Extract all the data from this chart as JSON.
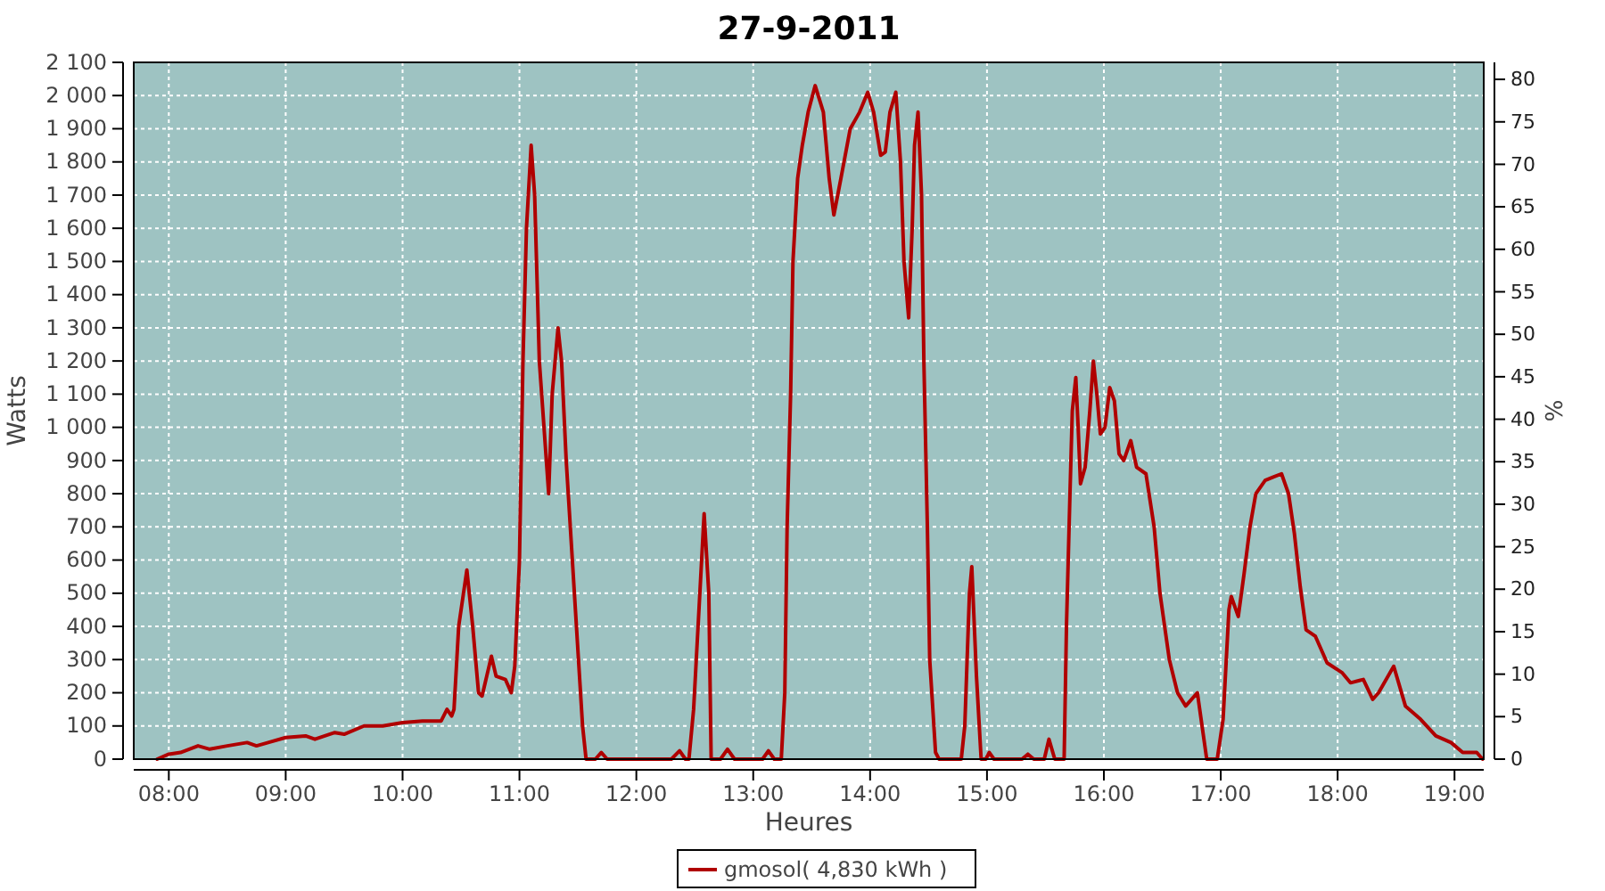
{
  "chart_data": {
    "type": "line",
    "title": "27-9-2011",
    "xlabel": "Heures",
    "ylabel": "Watts",
    "y2label": "%",
    "xlim": [
      7.7,
      19.25
    ],
    "xticks": [
      {
        "value": 8,
        "label": "08:00"
      },
      {
        "value": 9,
        "label": "09:00"
      },
      {
        "value": 10,
        "label": "10:00"
      },
      {
        "value": 11,
        "label": "11:00"
      },
      {
        "value": 12,
        "label": "12:00"
      },
      {
        "value": 13,
        "label": "13:00"
      },
      {
        "value": 14,
        "label": "14:00"
      },
      {
        "value": 15,
        "label": "15:00"
      },
      {
        "value": 16,
        "label": "16:00"
      },
      {
        "value": 17,
        "label": "17:00"
      },
      {
        "value": 18,
        "label": "18:00"
      },
      {
        "value": 19,
        "label": "19:00"
      }
    ],
    "ylim": [
      0,
      2100
    ],
    "yticks": [
      0,
      100,
      200,
      300,
      400,
      500,
      600,
      700,
      800,
      900,
      {
        "value": 1000,
        "label": "1 000"
      },
      {
        "value": 1100,
        "label": "1 100"
      },
      {
        "value": 1200,
        "label": "1 200"
      },
      {
        "value": 1300,
        "label": "1 300"
      },
      {
        "value": 1400,
        "label": "1 400"
      },
      {
        "value": 1500,
        "label": "1 500"
      },
      {
        "value": 1600,
        "label": "1 600"
      },
      {
        "value": 1700,
        "label": "1 700"
      },
      {
        "value": 1800,
        "label": "1 800"
      },
      {
        "value": 1900,
        "label": "1 900"
      },
      {
        "value": 2000,
        "label": "2 000"
      },
      {
        "value": 2100,
        "label": "2 100"
      }
    ],
    "y2lim": [
      0,
      82
    ],
    "y2ticks": [
      0,
      5,
      10,
      15,
      20,
      25,
      30,
      35,
      40,
      45,
      50,
      55,
      60,
      65,
      70,
      75,
      80
    ],
    "grid": true,
    "legend": "bottom",
    "marker": "none",
    "line_style": "solid",
    "series": [
      {
        "name": "gmosol( 4,830 kWh )",
        "color": "#b00000",
        "x": [
          7.9,
          8.0,
          8.1,
          8.25,
          8.35,
          8.5,
          8.67,
          8.75,
          8.85,
          9.0,
          9.17,
          9.25,
          9.42,
          9.5,
          9.67,
          9.83,
          10.0,
          10.17,
          10.33,
          10.38,
          10.42,
          10.44,
          10.48,
          10.55,
          10.6,
          10.65,
          10.68,
          10.72,
          10.76,
          10.8,
          10.88,
          10.93,
          10.96,
          11.0,
          11.03,
          11.06,
          11.1,
          11.13,
          11.17,
          11.21,
          11.25,
          11.28,
          11.33,
          11.36,
          11.4,
          11.47,
          11.54,
          11.57,
          11.65,
          11.7,
          11.75,
          12.3,
          12.37,
          12.42,
          12.45,
          12.49,
          12.58,
          12.62,
          12.64,
          12.72,
          12.78,
          12.84,
          13.08,
          13.13,
          13.18,
          13.24,
          13.27,
          13.29,
          13.32,
          13.34,
          13.38,
          13.42,
          13.47,
          13.53,
          13.6,
          13.65,
          13.69,
          13.75,
          13.83,
          13.91,
          13.98,
          14.03,
          14.09,
          14.13,
          14.17,
          14.22,
          14.26,
          14.29,
          14.33,
          14.36,
          14.38,
          14.41,
          14.44,
          14.46,
          14.49,
          14.51,
          14.56,
          14.59,
          14.78,
          14.81,
          14.85,
          14.87,
          14.91,
          14.95,
          14.99,
          15.02,
          15.06,
          15.3,
          15.35,
          15.4,
          15.49,
          15.53,
          15.58,
          15.66,
          15.68,
          15.71,
          15.73,
          15.76,
          15.78,
          15.8,
          15.84,
          15.88,
          15.91,
          15.94,
          15.97,
          16.01,
          16.05,
          16.09,
          16.13,
          16.17,
          16.23,
          16.28,
          16.36,
          16.43,
          16.48,
          16.56,
          16.63,
          16.7,
          16.8,
          16.84,
          16.88,
          16.97,
          17.02,
          17.07,
          17.09,
          17.15,
          17.2,
          17.25,
          17.3,
          17.38,
          17.45,
          17.52,
          17.58,
          17.63,
          17.68,
          17.73,
          17.81,
          17.91,
          18.04,
          18.11,
          18.22,
          18.3,
          18.35,
          18.48,
          18.58,
          18.71,
          18.84,
          18.97,
          19.07,
          19.19,
          19.24
        ],
        "values": [
          0,
          15,
          20,
          40,
          30,
          40,
          50,
          40,
          50,
          65,
          70,
          60,
          80,
          75,
          100,
          100,
          110,
          115,
          115,
          150,
          130,
          150,
          400,
          570,
          400,
          200,
          190,
          250,
          310,
          250,
          240,
          200,
          280,
          600,
          1200,
          1600,
          1850,
          1700,
          1200,
          1000,
          800,
          1100,
          1300,
          1200,
          900,
          500,
          100,
          0,
          0,
          20,
          0,
          0,
          25,
          0,
          0,
          150,
          740,
          500,
          0,
          0,
          30,
          0,
          0,
          25,
          0,
          0,
          200,
          700,
          1100,
          1500,
          1750,
          1850,
          1950,
          2030,
          1950,
          1750,
          1640,
          1750,
          1900,
          1950,
          2010,
          1950,
          1820,
          1830,
          1950,
          2010,
          1800,
          1500,
          1330,
          1600,
          1850,
          1950,
          1700,
          1200,
          700,
          300,
          20,
          0,
          0,
          100,
          500,
          580,
          250,
          0,
          0,
          20,
          0,
          0,
          15,
          0,
          0,
          60,
          0,
          0,
          400,
          800,
          1050,
          1150,
          1000,
          830,
          880,
          1050,
          1200,
          1100,
          980,
          1000,
          1120,
          1080,
          920,
          900,
          960,
          880,
          860,
          700,
          500,
          300,
          200,
          160,
          200,
          100,
          0,
          0,
          120,
          450,
          490,
          430,
          560,
          700,
          800,
          840,
          850,
          860,
          800,
          680,
          520,
          390,
          370,
          290,
          260,
          230,
          240,
          180,
          200,
          280,
          160,
          120,
          70,
          50,
          20,
          20,
          0
        ]
      }
    ]
  }
}
